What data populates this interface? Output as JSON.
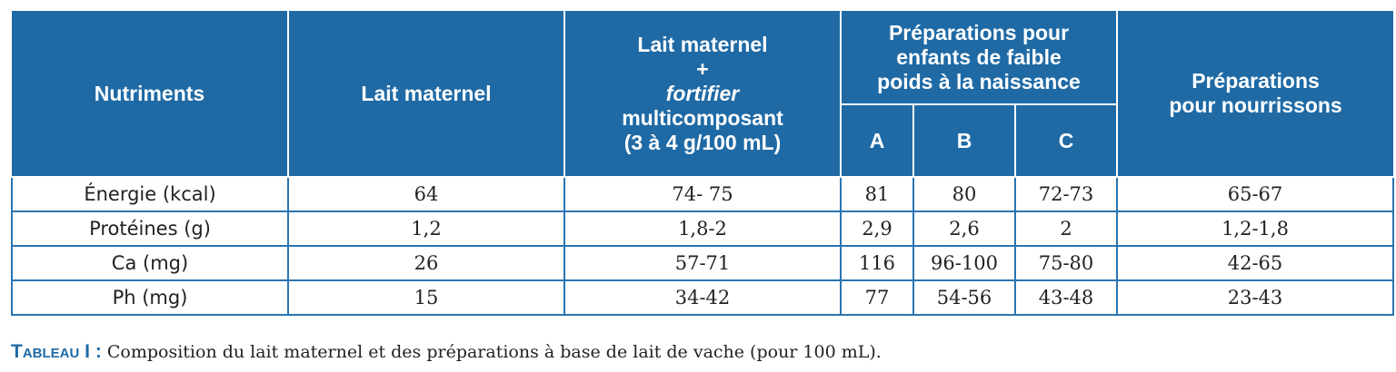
{
  "header": {
    "nutriments": "Nutriments",
    "lait_maternel": "Lait maternel",
    "fortified": {
      "line1": "Lait maternel",
      "line2": "+",
      "line3": "fortifier",
      "line4": "multicomposant",
      "line5": "(3 à 4 g/100 mL)"
    },
    "faible_poids": {
      "line1": "Préparations pour",
      "line2": "enfants de faible",
      "line3": "poids à la naissance"
    },
    "sub": [
      "A",
      "B",
      "C"
    ],
    "nourrissons": {
      "line1": "Préparations",
      "line2": "pour nourrissons"
    }
  },
  "rows": [
    {
      "label": "Énergie (kcal)",
      "values": [
        "64",
        "74- 75",
        "81",
        "80",
        "72-73",
        "65-67"
      ]
    },
    {
      "label": "Protéines (g)",
      "values": [
        "1,2",
        "1,8-2",
        "2,9",
        "2,6",
        "2",
        "1,2-1,8"
      ]
    },
    {
      "label": "Ca (mg)",
      "values": [
        "26",
        "57-71",
        "116",
        "96-100",
        "75-80",
        "42-65"
      ]
    },
    {
      "label": "Ph (mg)",
      "values": [
        "15",
        "34-42",
        "77",
        "54-56",
        "43-48",
        "23-43"
      ]
    }
  ],
  "caption": {
    "tag": "Tableau I :",
    "text": " Composition du lait maternel et des préparations à base de lait de vache (pour 100 mL)."
  },
  "colors": {
    "header_bg": "#1f6aa5",
    "grid": "#2a74b0"
  }
}
